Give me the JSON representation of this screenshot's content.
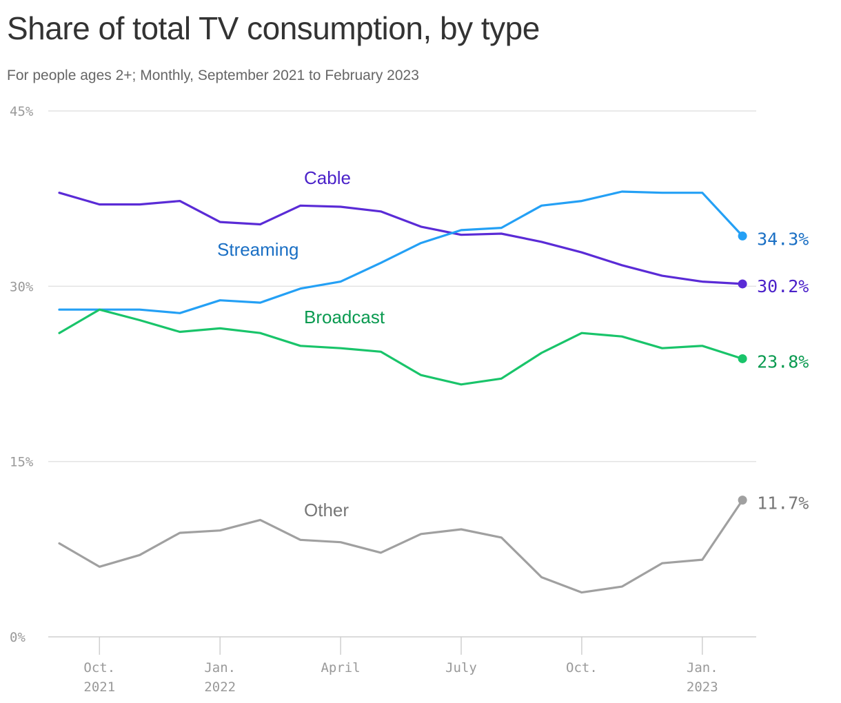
{
  "title": "Share of total TV consumption, by type",
  "subtitle": "For people ages 2+; Monthly, September 2021 to February 2023",
  "chart_data": {
    "type": "line",
    "x": [
      "2021-09",
      "2021-10",
      "2021-11",
      "2021-12",
      "2022-01",
      "2022-02",
      "2022-03",
      "2022-04",
      "2022-05",
      "2022-06",
      "2022-07",
      "2022-08",
      "2022-09",
      "2022-10",
      "2022-11",
      "2022-12",
      "2023-01",
      "2023-02"
    ],
    "ylim": [
      0,
      45
    ],
    "y_ticks": [
      0,
      15,
      30,
      45
    ],
    "y_tick_labels": [
      "0%",
      "15%",
      "30%",
      "45%"
    ],
    "x_ticks": [
      {
        "x": "2021-10",
        "line1": "Oct.",
        "line2": "2021"
      },
      {
        "x": "2022-01",
        "line1": "Jan.",
        "line2": "2022"
      },
      {
        "x": "2022-04",
        "line1": "April",
        "line2": ""
      },
      {
        "x": "2022-07",
        "line1": "July",
        "line2": ""
      },
      {
        "x": "2022-10",
        "line1": "Oct.",
        "line2": ""
      },
      {
        "x": "2023-01",
        "line1": "Jan.",
        "line2": "2023"
      }
    ],
    "grid": true,
    "series": [
      {
        "name": "Cable",
        "color": "#5a2bd6",
        "label_color": "#4b22c9",
        "values": [
          38.0,
          37.0,
          37.0,
          37.3,
          35.5,
          35.3,
          36.9,
          36.8,
          36.4,
          35.1,
          34.4,
          34.5,
          33.8,
          32.9,
          31.8,
          30.9,
          30.4,
          30.2
        ],
        "end_label": "30.2%"
      },
      {
        "name": "Streaming",
        "color": "#24a0f5",
        "label_color": "#1a6fc4",
        "values": [
          28.0,
          28.0,
          28.0,
          27.7,
          28.8,
          28.6,
          29.8,
          30.4,
          32.0,
          33.7,
          34.8,
          35.0,
          36.9,
          37.3,
          38.1,
          38.0,
          38.0,
          34.3
        ],
        "end_label": "34.3%"
      },
      {
        "name": "Broadcast",
        "color": "#19c46a",
        "label_color": "#0a9a50",
        "values": [
          26.0,
          28.0,
          27.1,
          26.1,
          26.4,
          26.0,
          24.9,
          24.7,
          24.4,
          22.4,
          21.6,
          22.1,
          24.3,
          26.0,
          25.7,
          24.7,
          24.9,
          23.8
        ],
        "end_label": "23.8%"
      },
      {
        "name": "Other",
        "color": "#a0a0a0",
        "label_color": "#777777",
        "values": [
          8.0,
          6.0,
          7.0,
          8.9,
          9.1,
          10.0,
          8.3,
          8.1,
          7.2,
          8.8,
          9.2,
          8.5,
          5.1,
          3.8,
          4.3,
          6.3,
          6.6,
          11.7
        ],
        "end_label": "11.7%"
      }
    ]
  }
}
